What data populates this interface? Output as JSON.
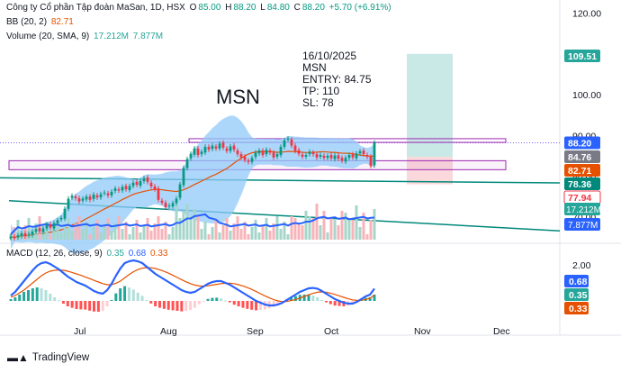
{
  "header": {
    "title": "Công ty Cổ phần Tập đoàn MaSan, 1D, HSX",
    "o_label": "O",
    "o": "85.00",
    "h_label": "H",
    "h": "88.20",
    "l_label": "L",
    "l": "84.80",
    "c_label": "C",
    "c": "88.20",
    "change": "+5.70 (+6.91%)",
    "bb_label": "BB (20, 2)",
    "bb_value": "82.71",
    "vol_label": "Volume (20, SMA, 9)",
    "vol_value1": "17.212M",
    "vol_value2": "7.877M",
    "macd_label": "MACD (12, 26, close, 9)",
    "macd_v1": "0.35",
    "macd_v2": "0.68",
    "macd_v3": "0.33"
  },
  "annotation": {
    "date": "16/10/2025",
    "symbol": "MSN",
    "entry": "ENTRY: 84.75",
    "tp": "TP: 110",
    "sl": "SL: 78"
  },
  "big_symbol": "MSN",
  "brand": "TradingView",
  "colors": {
    "up": "#089981",
    "down": "#f23645",
    "bb_fill": "#90caf9",
    "bb_mid": "#e65100",
    "vol_sma": "#2962ff",
    "macd_line": "#2962ff",
    "signal": "#e65100",
    "tp_zone": "#b2dfdb",
    "sl_zone": "#f8c8cc",
    "trend": "#00897b"
  },
  "chart_data": [
    {
      "type": "candlestick",
      "title": "",
      "x_ticks": [
        "Jul",
        "Aug",
        "Sep",
        "Oct",
        "Nov",
        "Dec"
      ],
      "y_ticks": [
        70,
        80,
        90,
        100,
        110,
        120
      ],
      "y_tick_labels": [
        "70.00",
        "80.00",
        "90.00",
        "100.00",
        "110.00",
        "120.00"
      ],
      "ylim": [
        64,
        121
      ],
      "closes": [
        65.2,
        64.8,
        65.5,
        66.0,
        65.3,
        65.8,
        66.4,
        67.0,
        66.5,
        67.2,
        68.0,
        67.4,
        68.5,
        69.2,
        69.8,
        72.0,
        74.5,
        75.2,
        74.6,
        73.8,
        74.5,
        75.0,
        74.2,
        75.5,
        74.8,
        75.6,
        76.0,
        75.3,
        76.2,
        77.0,
        76.5,
        77.4,
        76.8,
        77.6,
        78.4,
        77.9,
        78.8,
        79.5,
        78.6,
        77.5,
        76.8,
        74.2,
        73.5,
        72.4,
        72.8,
        73.4,
        74.5,
        78.0,
        82.0,
        84.2,
        85.5,
        86.8,
        85.2,
        86.0,
        87.2,
        86.5,
        87.5,
        86.8,
        88.0,
        87.0,
        86.2,
        87.3,
        86.5,
        85.4,
        84.6,
        84.0,
        83.5,
        84.5,
        85.8,
        86.3,
        85.2,
        86.5,
        85.8,
        84.6,
        85.4,
        87.2,
        88.8,
        89.2,
        87.5,
        86.2,
        85.5,
        84.8,
        85.2,
        86.0,
        85.4,
        84.6,
        85.2,
        84.5,
        85.0,
        84.4,
        85.1,
        84.3,
        83.8,
        84.5,
        85.2,
        84.6,
        85.6,
        86.1,
        85.4,
        84.8,
        82.5,
        88.2
      ],
      "bb_mid_start": 64.5,
      "bb_mid_end": 82.71,
      "price_labels": [
        "109.51",
        "88.20",
        "84.76",
        "82.71",
        "78.36",
        "77.94"
      ],
      "current_price": 88.2,
      "entry": 84.75,
      "tp": 110,
      "sl": 78
    },
    {
      "type": "bar",
      "title": "Volume (20, SMA, 9)",
      "sma_value": 7.877,
      "labels": [
        "17.212M",
        "7.877M"
      ]
    },
    {
      "type": "line",
      "title": "MACD (12, 26, close, 9)",
      "y_ticks": [
        2.0
      ],
      "y_tick_labels": [
        "2.00"
      ],
      "ylim": [
        -1.2,
        2.6
      ],
      "macd_line": [
        0.3,
        0.5,
        0.8,
        1.1,
        1.4,
        1.7,
        1.95,
        2.1,
        2.15,
        2.05,
        1.9,
        1.75,
        1.55,
        1.35,
        1.2,
        1.05,
        0.95,
        0.85,
        0.7,
        0.55,
        0.45,
        0.4,
        0.6,
        0.95,
        1.4,
        1.8,
        2.1,
        2.2,
        2.25,
        2.2,
        2.1,
        1.9,
        1.7,
        1.5,
        1.35,
        1.2,
        1.05,
        0.9,
        0.75,
        0.6,
        0.5,
        0.45,
        0.5,
        0.65,
        0.8,
        0.95,
        1.05,
        1.1,
        1.1,
        1.0,
        0.9,
        0.75,
        0.6,
        0.45,
        0.3,
        0.15,
        0.0,
        -0.1,
        -0.2,
        -0.25,
        -0.25,
        -0.2,
        -0.1,
        0.05,
        0.2,
        0.35,
        0.5,
        0.6,
        0.7,
        0.72,
        0.68,
        0.55,
        0.4,
        0.25,
        0.1,
        0.0,
        -0.1,
        -0.15,
        -0.15,
        -0.05,
        0.1,
        0.25,
        0.35,
        0.68
      ],
      "signal_line": [
        0.2,
        0.3,
        0.45,
        0.6,
        0.8,
        1.0,
        1.2,
        1.4,
        1.55,
        1.65,
        1.7,
        1.72,
        1.7,
        1.65,
        1.58,
        1.5,
        1.42,
        1.33,
        1.24,
        1.14,
        1.05,
        0.96,
        0.9,
        0.9,
        0.98,
        1.1,
        1.28,
        1.46,
        1.62,
        1.74,
        1.82,
        1.85,
        1.84,
        1.8,
        1.73,
        1.64,
        1.54,
        1.42,
        1.3,
        1.18,
        1.06,
        0.96,
        0.88,
        0.83,
        0.82,
        0.84,
        0.88,
        0.92,
        0.96,
        0.98,
        0.98,
        0.96,
        0.9,
        0.83,
        0.74,
        0.64,
        0.52,
        0.4,
        0.28,
        0.17,
        0.07,
        -0.0,
        -0.04,
        -0.03,
        0.02,
        0.08,
        0.16,
        0.25,
        0.34,
        0.42,
        0.48,
        0.5,
        0.48,
        0.43,
        0.36,
        0.28,
        0.2,
        0.12,
        0.06,
        0.03,
        0.04,
        0.08,
        0.15,
        0.33
      ],
      "labels": [
        "0.68",
        "0.35",
        "0.33"
      ]
    }
  ]
}
